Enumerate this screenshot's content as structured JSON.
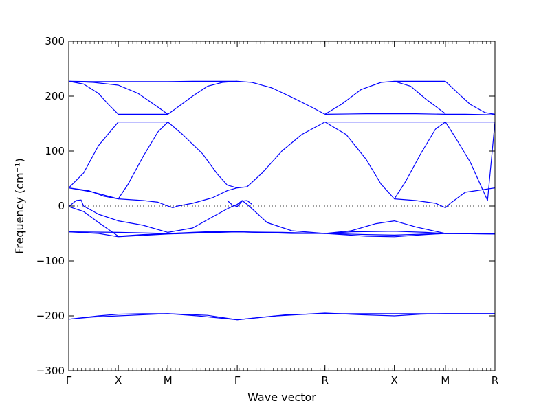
{
  "chart_data": {
    "type": "line",
    "xlabel": "Wave vector",
    "ylabel": "Frequency (cm⁻¹)",
    "ylim": [
      -300,
      300
    ],
    "yticks": [
      300,
      200,
      100,
      0,
      -100,
      -200,
      -300
    ],
    "ytick_labels": [
      "300",
      "200",
      "100",
      "0",
      "−100",
      "−200",
      "−300"
    ],
    "xlim": [
      0,
      8.6
    ],
    "xticks": [
      0,
      1,
      2,
      3.4,
      5.17,
      6.57,
      7.6,
      8.6
    ],
    "xtick_labels": [
      "Γ",
      "X",
      "M",
      "Γ",
      "R",
      "X",
      "M",
      "R"
    ],
    "grid": false,
    "line_color": "#0000ff",
    "reference_line": {
      "y": 0,
      "style": "dotted",
      "color": "#000000"
    },
    "series": [
      {
        "values": [
          [
            0,
            227
          ],
          [
            0.5,
            226.5
          ],
          [
            1,
            226.5
          ],
          [
            1.5,
            226.5
          ],
          [
            2,
            226.5
          ],
          [
            2.5,
            227
          ],
          [
            3,
            227
          ],
          [
            3.4,
            227
          ]
        ]
      },
      {
        "values": [
          [
            0,
            227
          ],
          [
            0.3,
            222
          ],
          [
            0.6,
            205
          ],
          [
            0.8,
            185
          ],
          [
            1,
            167
          ],
          [
            1.5,
            167
          ],
          [
            2,
            167
          ],
          [
            2.2,
            180
          ],
          [
            2.5,
            200
          ],
          [
            2.8,
            218
          ],
          [
            3.1,
            225
          ],
          [
            3.4,
            227
          ],
          [
            3.7,
            225
          ],
          [
            4.1,
            215
          ],
          [
            4.5,
            198
          ],
          [
            4.9,
            180
          ],
          [
            5.17,
            167
          ]
        ]
      },
      {
        "values": [
          [
            0,
            227
          ],
          [
            0.5,
            225
          ],
          [
            1,
            220
          ],
          [
            1.4,
            205
          ],
          [
            1.8,
            180
          ],
          [
            2,
            167
          ]
        ]
      },
      {
        "values": [
          [
            5.17,
            167
          ],
          [
            5.5,
            185
          ],
          [
            5.9,
            212
          ],
          [
            6.3,
            225
          ],
          [
            6.57,
            227
          ],
          [
            7,
            227
          ],
          [
            7.6,
            227
          ],
          [
            7.8,
            210
          ],
          [
            8.1,
            185
          ],
          [
            8.4,
            170
          ],
          [
            8.6,
            167
          ]
        ]
      },
      {
        "values": [
          [
            5.17,
            167
          ],
          [
            6,
            168
          ],
          [
            6.57,
            168
          ],
          [
            7,
            168
          ],
          [
            7.6,
            167
          ],
          [
            8,
            167
          ],
          [
            8.6,
            166
          ]
        ]
      },
      {
        "values": [
          [
            6.57,
            227
          ],
          [
            6.9,
            218
          ],
          [
            7.2,
            195
          ],
          [
            7.6,
            168
          ]
        ]
      },
      {
        "values": [
          [
            0,
            33
          ],
          [
            0.3,
            60
          ],
          [
            0.6,
            110
          ],
          [
            1,
            153
          ],
          [
            1.5,
            153
          ],
          [
            2,
            153
          ],
          [
            2.3,
            130
          ],
          [
            2.7,
            95
          ],
          [
            3,
            58
          ],
          [
            3.2,
            38
          ],
          [
            3.4,
            33
          ],
          [
            3.6,
            35
          ],
          [
            3.9,
            60
          ],
          [
            4.3,
            100
          ],
          [
            4.7,
            130
          ],
          [
            5.17,
            153
          ],
          [
            5.6,
            130
          ],
          [
            6,
            85
          ],
          [
            6.3,
            40
          ],
          [
            6.57,
            13
          ],
          [
            6.8,
            45
          ],
          [
            7.1,
            95
          ],
          [
            7.4,
            140
          ],
          [
            7.6,
            153
          ],
          [
            8.1,
            153
          ],
          [
            8.6,
            153
          ]
        ]
      },
      {
        "values": [
          [
            0,
            33
          ],
          [
            0.4,
            28
          ],
          [
            0.7,
            18
          ],
          [
            1,
            13
          ],
          [
            1.2,
            40
          ],
          [
            1.5,
            90
          ],
          [
            1.8,
            135
          ],
          [
            2,
            153
          ]
        ]
      },
      {
        "values": [
          [
            5.17,
            153
          ],
          [
            5.8,
            153
          ],
          [
            6.57,
            153
          ],
          [
            7.1,
            153
          ],
          [
            7.6,
            153
          ],
          [
            7.8,
            125
          ],
          [
            8.1,
            80
          ],
          [
            8.3,
            40
          ],
          [
            8.45,
            10
          ],
          [
            8.6,
            153
          ]
        ]
      },
      {
        "values": [
          [
            0,
            33
          ],
          [
            0.5,
            25
          ],
          [
            1,
            13
          ],
          [
            1.5,
            10
          ],
          [
            1.8,
            7
          ],
          [
            2,
            0
          ],
          [
            2.1,
            -3
          ],
          [
            2.2,
            0
          ],
          [
            2.5,
            5
          ],
          [
            2.9,
            15
          ],
          [
            3.2,
            28
          ],
          [
            3.4,
            33
          ]
        ]
      },
      {
        "values": [
          [
            6.57,
            13
          ],
          [
            7,
            10
          ],
          [
            7.4,
            5
          ],
          [
            7.6,
            -3
          ],
          [
            7.7,
            5
          ],
          [
            8,
            25
          ],
          [
            8.6,
            33
          ]
        ]
      },
      {
        "values": [
          [
            0,
            -1
          ],
          [
            0.15,
            10
          ],
          [
            0.25,
            11
          ],
          [
            0.3,
            0
          ],
          [
            0.6,
            -15
          ],
          [
            1,
            -27
          ],
          [
            1.5,
            -35
          ],
          [
            2,
            -48
          ],
          [
            2.5,
            -40
          ],
          [
            3,
            -15
          ],
          [
            3.2,
            -5
          ],
          [
            3.4,
            3
          ],
          [
            3.5,
            10
          ],
          [
            3.6,
            3
          ],
          [
            3.7,
            -5
          ],
          [
            4,
            -30
          ],
          [
            4.5,
            -45
          ],
          [
            5.17,
            -50
          ],
          [
            5.7,
            -45
          ],
          [
            6.2,
            -32
          ],
          [
            6.57,
            -27
          ],
          [
            7,
            -38
          ],
          [
            7.6,
            -50
          ],
          [
            8.6,
            -50
          ]
        ]
      },
      {
        "values": [
          [
            0,
            -1
          ],
          [
            0.3,
            -10
          ],
          [
            0.6,
            -30
          ],
          [
            1,
            -55
          ],
          [
            1.5,
            -52
          ],
          [
            2,
            -50
          ],
          [
            2.5,
            -48
          ],
          [
            3,
            -46
          ],
          [
            3.4,
            -47
          ],
          [
            3.8,
            -48
          ],
          [
            4.5,
            -50
          ],
          [
            5.17,
            -50
          ],
          [
            5.7,
            -47
          ],
          [
            6.57,
            -46
          ],
          [
            7.2,
            -48
          ],
          [
            7.6,
            -50
          ],
          [
            8.6,
            -50
          ]
        ]
      },
      {
        "values": [
          [
            0,
            -47
          ],
          [
            1,
            -48
          ],
          [
            2,
            -50
          ],
          [
            2.7,
            -48
          ],
          [
            3.4,
            -47
          ],
          [
            4.3,
            -48
          ],
          [
            5.17,
            -50
          ],
          [
            6,
            -55
          ],
          [
            6.57,
            -56
          ],
          [
            7.2,
            -52
          ],
          [
            7.6,
            -50
          ],
          [
            8.6,
            -51
          ]
        ]
      },
      {
        "values": [
          [
            0,
            -47
          ],
          [
            0.6,
            -50
          ],
          [
            1,
            -56
          ],
          [
            1.6,
            -53
          ],
          [
            2,
            -51
          ],
          [
            2.7,
            -49
          ],
          [
            3.4,
            -47
          ],
          [
            4.3,
            -49
          ],
          [
            5.17,
            -50
          ],
          [
            6,
            -52
          ],
          [
            6.57,
            -53
          ],
          [
            7.2,
            -51
          ],
          [
            7.6,
            -50
          ],
          [
            8.6,
            -51
          ]
        ]
      },
      {
        "values": [
          [
            3.2,
            10
          ],
          [
            3.3,
            2
          ],
          [
            3.4,
            -1
          ],
          [
            3.5,
            9
          ],
          [
            3.6,
            10
          ],
          [
            3.7,
            3
          ]
        ]
      },
      {
        "values": [
          [
            0,
            -206
          ],
          [
            0.5,
            -202
          ],
          [
            1,
            -200
          ],
          [
            1.5,
            -198
          ],
          [
            2,
            -196
          ],
          [
            2.6,
            -200
          ],
          [
            3.4,
            -207
          ],
          [
            4.2,
            -200
          ],
          [
            5.17,
            -195
          ],
          [
            5.9,
            -198
          ],
          [
            6.57,
            -200
          ],
          [
            7.1,
            -197
          ],
          [
            7.6,
            -196
          ],
          [
            8.6,
            -196
          ]
        ]
      },
      {
        "values": [
          [
            0,
            -206
          ],
          [
            0.6,
            -200
          ],
          [
            1,
            -197
          ],
          [
            1.5,
            -196
          ],
          [
            2,
            -196
          ],
          [
            2.8,
            -199
          ],
          [
            3.4,
            -207
          ],
          [
            4.4,
            -198
          ],
          [
            5.17,
            -196
          ],
          [
            6,
            -196
          ],
          [
            6.57,
            -196
          ],
          [
            7.1,
            -196
          ],
          [
            7.6,
            -196
          ],
          [
            8.6,
            -196
          ]
        ]
      }
    ]
  }
}
